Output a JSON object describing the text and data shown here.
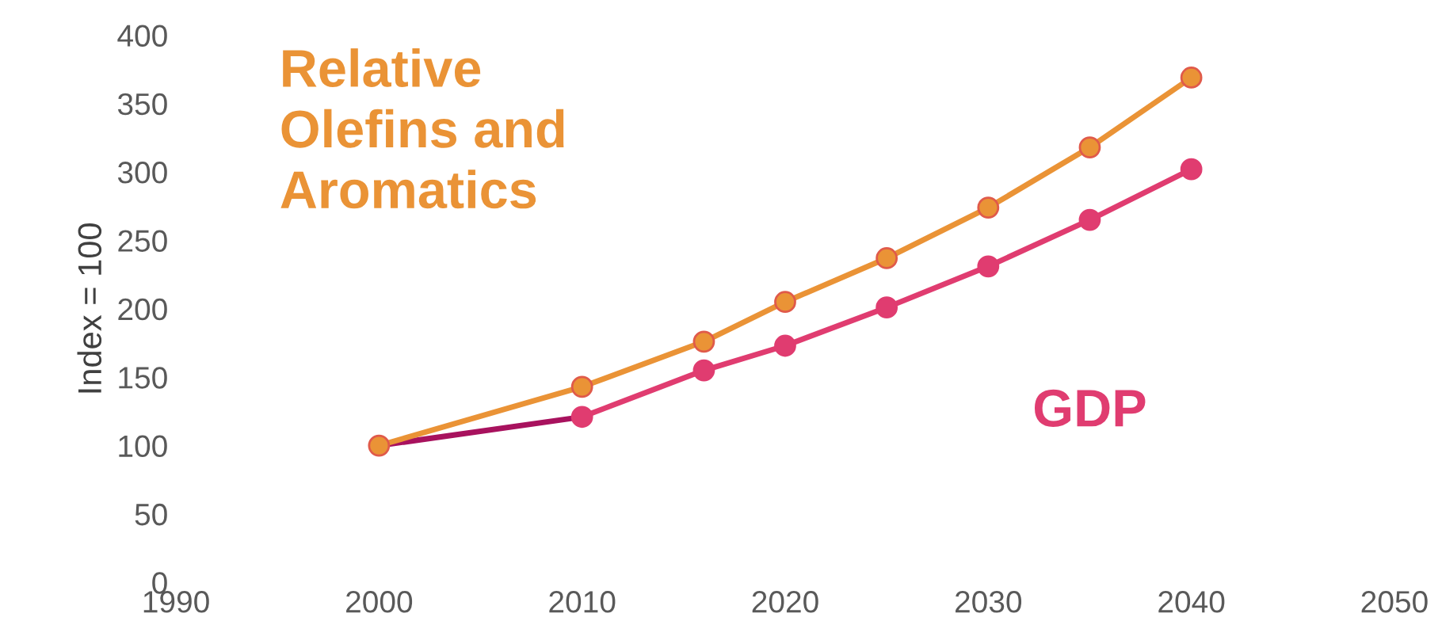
{
  "chart_data": {
    "type": "line",
    "ylabel": "Index = 100",
    "xlim": [
      1990,
      2050
    ],
    "xticks": [
      1990,
      2000,
      2010,
      2020,
      2030,
      2040,
      2050
    ],
    "ylim": [
      0,
      400
    ],
    "yticks": [
      0,
      50,
      100,
      150,
      200,
      250,
      300,
      350,
      400
    ],
    "grid": false,
    "legend": false,
    "marker": "circle",
    "line_style": "solid",
    "series": [
      {
        "color": "#a8125e",
        "x": [
          2000,
          2010
        ],
        "values": [
          100,
          121
        ],
        "marker": "none"
      },
      {
        "name": "GDP",
        "color": "#e03c70",
        "x": [
          2010,
          2016,
          2020,
          2025,
          2030,
          2035,
          2040
        ],
        "values": [
          121,
          155,
          173,
          201,
          231,
          265,
          302
        ]
      },
      {
        "name": "Relative\nOlefins and\nAromatics",
        "color": "#ea9336",
        "x": [
          2000,
          2010,
          2016,
          2020,
          2025,
          2030,
          2035,
          2040
        ],
        "values": [
          100,
          143,
          176,
          205,
          237,
          274,
          318,
          369
        ]
      }
    ]
  }
}
